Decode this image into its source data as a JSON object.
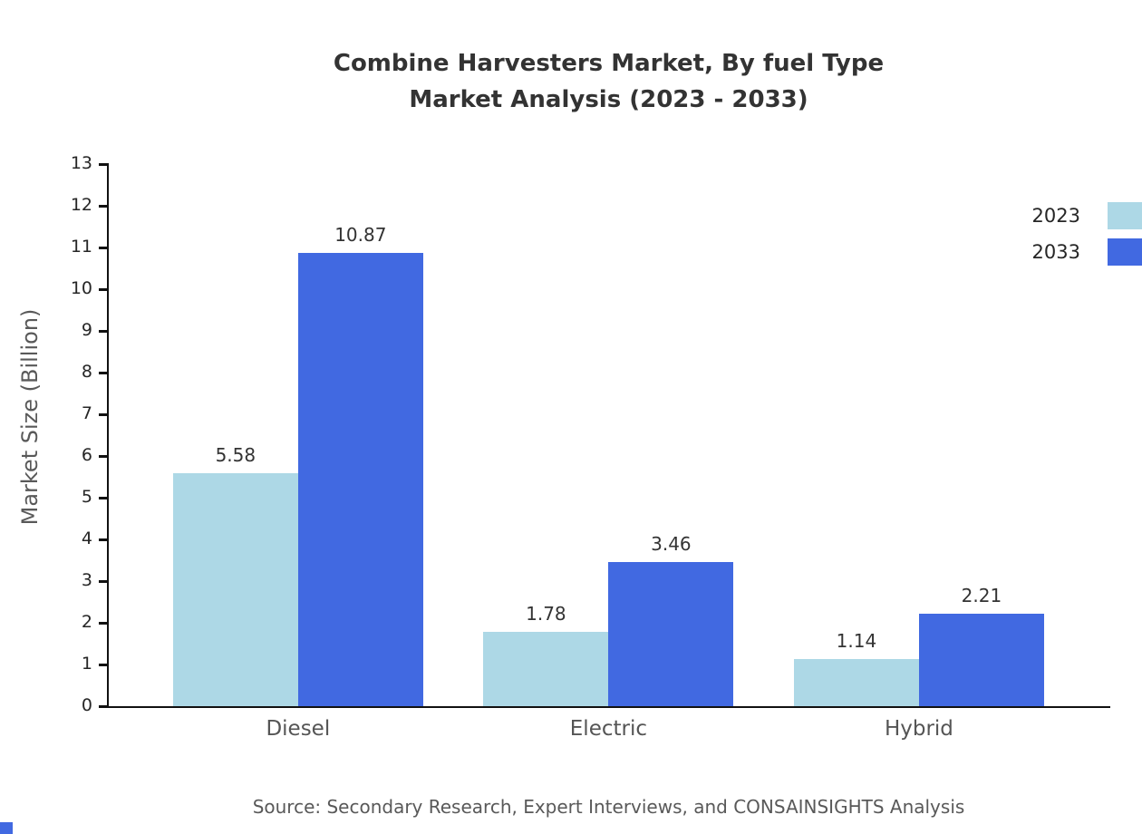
{
  "chart_data": {
    "type": "bar",
    "title": "Combine Harvesters Market, By fuel Type Market Analysis (2023 - 2033)",
    "title_lines": [
      "Combine Harvesters Market, By fuel Type",
      "Market Analysis (2023 - 2033)"
    ],
    "ylabel": "Market Size (Billion)",
    "xlabel": "",
    "ylim": [
      0,
      13
    ],
    "y_ticks": [
      0,
      1,
      2,
      3,
      4,
      5,
      6,
      7,
      8,
      9,
      10,
      11,
      12,
      13
    ],
    "categories": [
      "Diesel",
      "Electric",
      "Hybrid"
    ],
    "series": [
      {
        "name": "2023",
        "color": "#add8e6",
        "values": [
          5.58,
          1.78,
          1.14
        ]
      },
      {
        "name": "2033",
        "color": "#4169e1",
        "values": [
          10.87,
          3.46,
          2.21
        ]
      }
    ],
    "value_labels": [
      [
        "5.58",
        "10.87"
      ],
      [
        "1.78",
        "3.46"
      ],
      [
        "1.14",
        "2.21"
      ]
    ],
    "grid": false,
    "legend_position": "top-right",
    "source": "Source: Secondary Research, Expert Interviews, and CONSAINSIGHTS Analysis",
    "accent_color": "#4169e1"
  }
}
